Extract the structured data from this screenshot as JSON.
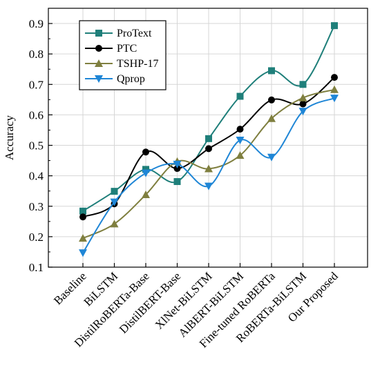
{
  "chart_data": {
    "type": "line",
    "title": "",
    "xlabel": "",
    "ylabel": "Accuracy",
    "ylim": [
      0.1,
      0.95
    ],
    "yticks": [
      "0.1",
      "0.2",
      "0.3",
      "0.4",
      "0.5",
      "0.6",
      "0.7",
      "0.8",
      "0.9"
    ],
    "grid": true,
    "legend_position": "top-left",
    "categories": [
      "Baseline",
      "BiLSTM",
      "DistilRoBERTa-Base",
      "DistilBERT-Base",
      "XlNet-BiLSTM",
      "AlBERT-BiLSTM",
      "Fine-tuned RoBERTa",
      "RoBERTa-BiLSTM",
      "Our Proposed"
    ],
    "series": [
      {
        "name": "ProText",
        "color": "#1f7f7a",
        "marker": "square",
        "values": [
          0.284,
          0.349,
          0.421,
          0.381,
          0.522,
          0.661,
          0.745,
          0.7,
          0.893
        ]
      },
      {
        "name": "PTC",
        "color": "#000000",
        "marker": "circle",
        "values": [
          0.265,
          0.308,
          0.478,
          0.424,
          0.489,
          0.553,
          0.649,
          0.636,
          0.723
        ]
      },
      {
        "name": "TSHP-17",
        "color": "#7f7f3f",
        "marker": "triangle-up",
        "values": [
          0.195,
          0.242,
          0.338,
          0.447,
          0.423,
          0.467,
          0.588,
          0.656,
          0.683
        ]
      },
      {
        "name": "Qprop",
        "color": "#1f86d6",
        "marker": "triangle-down",
        "values": [
          0.147,
          0.314,
          0.409,
          0.438,
          0.366,
          0.517,
          0.461,
          0.612,
          0.655
        ]
      }
    ]
  }
}
